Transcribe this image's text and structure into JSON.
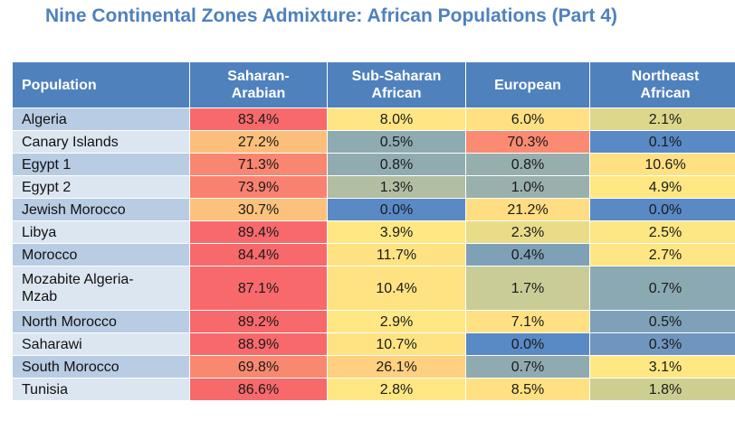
{
  "title": "Nine Continental Zones Admixture: African Populations (Part 4)",
  "headers": [
    "Population",
    "Saharan-\nArabian",
    "Sub-Saharan\nAfrican",
    "European",
    "Northeast\nAfrican"
  ],
  "rows": [
    {
      "population": "Algeria",
      "values": [
        "83.4%",
        "8.0%",
        "6.0%",
        "2.1%"
      ],
      "colors": [
        "#f8696b",
        "#ffe583",
        "#ffe183",
        "#dcd78b"
      ]
    },
    {
      "population": "Canary Islands",
      "values": [
        "27.2%",
        "0.5%",
        "70.3%",
        "0.1%"
      ],
      "colors": [
        "#fcbe7b",
        "#8eabb2",
        "#fa8b72",
        "#5a8ac6"
      ]
    },
    {
      "population": "Egypt 1",
      "values": [
        "71.3%",
        "0.8%",
        "0.8%",
        "10.6%"
      ],
      "colors": [
        "#f98670",
        "#91acb0",
        "#96aeae",
        "#ffe083"
      ]
    },
    {
      "population": "Egypt 2",
      "values": [
        "73.9%",
        "1.3%",
        "1.0%",
        "4.9%"
      ],
      "colors": [
        "#f98170",
        "#b2bea2",
        "#9ab0ad",
        "#ffe884"
      ]
    },
    {
      "population": "Jewish Morocco",
      "values": [
        "30.7%",
        "0.0%",
        "21.2%",
        "0.0%"
      ],
      "colors": [
        "#fcc17c",
        "#5a8ac6",
        "#ffdd82",
        "#5a8ac6"
      ]
    },
    {
      "population": "Libya",
      "values": [
        "89.4%",
        "3.9%",
        "2.3%",
        "2.5%"
      ],
      "colors": [
        "#f8696b",
        "#ffe884",
        "#e8dc88",
        "#fde684"
      ]
    },
    {
      "population": "Morocco",
      "values": [
        "84.4%",
        "11.7%",
        "0.4%",
        "2.7%"
      ],
      "colors": [
        "#f8696b",
        "#ffe383",
        "#7fa1b8",
        "#ffe684"
      ]
    },
    {
      "population": "Mozabite Algeria-\nMzab",
      "values": [
        "87.1%",
        "10.4%",
        "1.7%",
        "0.7%"
      ],
      "colors": [
        "#f8696b",
        "#ffe383",
        "#c9cc97",
        "#8aa9b3"
      ],
      "tall": true
    },
    {
      "population": "North Morocco",
      "values": [
        "89.2%",
        "2.9%",
        "7.1%",
        "0.5%"
      ],
      "colors": [
        "#f8696b",
        "#ffe784",
        "#ffe183",
        "#7ea1b9"
      ]
    },
    {
      "population": "Saharawi",
      "values": [
        "88.9%",
        "10.7%",
        "0.0%",
        "0.3%"
      ],
      "colors": [
        "#f8696b",
        "#ffe383",
        "#5a8ac6",
        "#7096bf"
      ]
    },
    {
      "population": "South Morocco",
      "values": [
        "69.8%",
        "26.1%",
        "0.7%",
        "3.1%"
      ],
      "colors": [
        "#f98870",
        "#fed080",
        "#90aab1",
        "#ffe784"
      ]
    },
    {
      "population": "Tunisia",
      "values": [
        "86.6%",
        "2.8%",
        "8.5%",
        "1.8%"
      ],
      "colors": [
        "#f8696b",
        "#ffe784",
        "#ffe183",
        "#cdcf91"
      ]
    }
  ]
}
